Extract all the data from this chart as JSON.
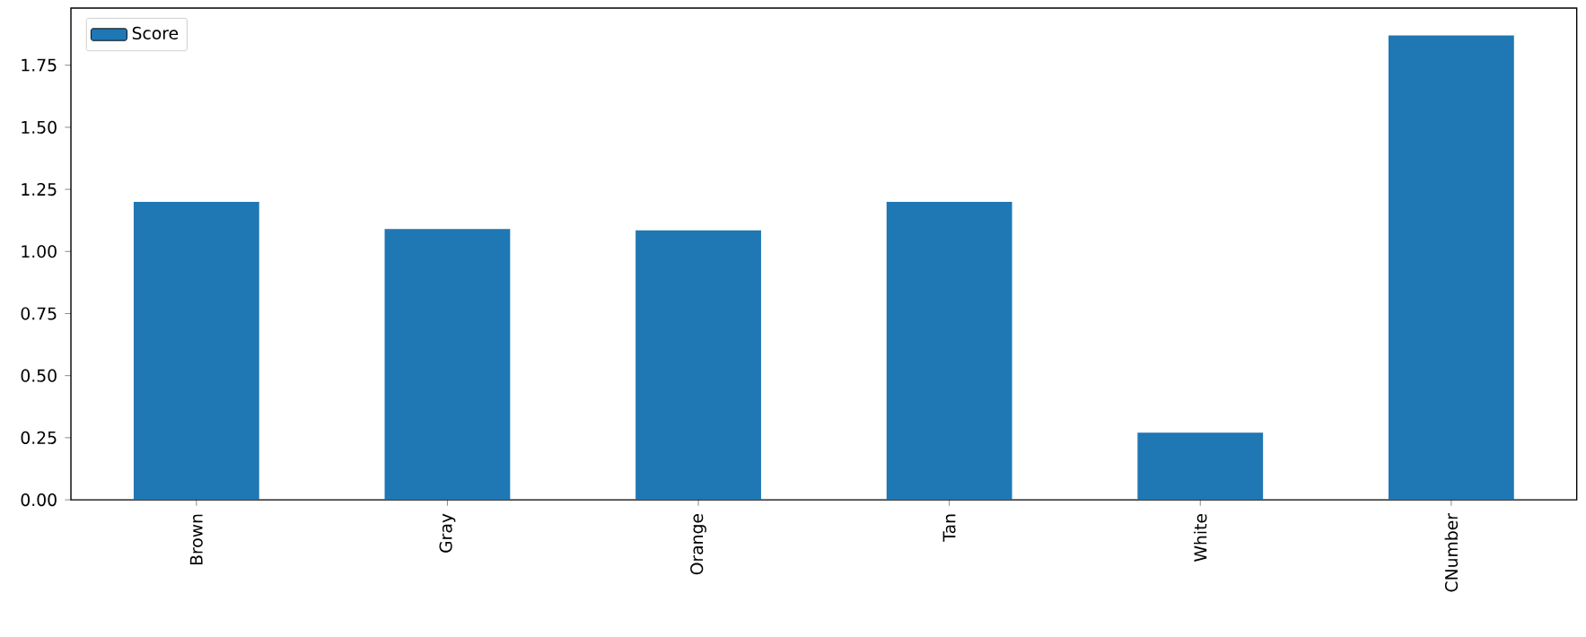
{
  "chart_data": {
    "type": "bar",
    "categories": [
      "Brown",
      "Gray",
      "Orange",
      "Tan",
      "White",
      "CNumber"
    ],
    "series": [
      {
        "name": "Score",
        "color": "#1f77b4",
        "values": [
          1.2,
          1.09,
          1.085,
          1.2,
          0.27,
          1.87
        ]
      }
    ],
    "ylim": [
      0,
      1.98
    ],
    "yticks": [
      {
        "value": 0,
        "label": "0.00"
      },
      {
        "value": 0.25,
        "label": "0.25"
      },
      {
        "value": 0.5,
        "label": "0.50"
      },
      {
        "value": 0.75,
        "label": "0.75"
      },
      {
        "value": 1.0,
        "label": "1.00"
      },
      {
        "value": 1.25,
        "label": "1.25"
      },
      {
        "value": 1.5,
        "label": "1.50"
      },
      {
        "value": 1.75,
        "label": "1.75"
      }
    ],
    "legend": "top left"
  }
}
